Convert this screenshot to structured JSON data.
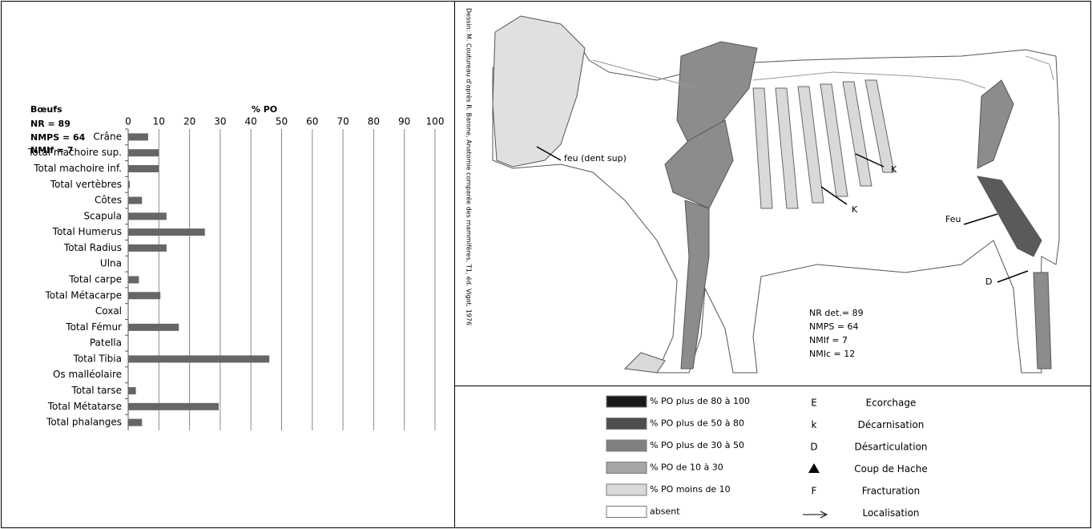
{
  "chart_data": {
    "type": "hbar",
    "title": "% PO",
    "annotations": [
      "Bœufs",
      "NR = 89",
      "NMPS = 64",
      "NMIf = 7"
    ],
    "categories": [
      "Crâne",
      "Total machoire sup.",
      "Total machoire inf.",
      "Total vertèbres",
      "Côtes",
      "Scapula",
      "Total Humerus",
      "Total Radius",
      "Ulna",
      "Total carpe",
      "Total Métacarpe",
      "Coxal",
      "Total Fémur",
      "Patella",
      "Total Tibia",
      "Os malléolaire",
      "Total tarse",
      "Total Métatarse",
      "Total phalanges"
    ],
    "values": [
      6.5,
      10,
      10,
      0.5,
      4.5,
      12.5,
      25,
      12.5,
      0,
      3.5,
      10.5,
      0,
      16.5,
      0,
      46,
      0,
      2.5,
      29.5,
      4.5
    ],
    "color": "#666666",
    "xlim": [
      0,
      100
    ],
    "xticks": [
      0,
      10,
      20,
      30,
      40,
      50,
      60,
      70,
      80,
      90,
      100
    ],
    "grid": true
  },
  "diagram": {
    "credit": "Dessin: M. Coutureau d'après R. Barone, Anatomie comparée des mammifères, T1, éd. Vigot, 1976",
    "annotations": [
      "feu (dent sup)",
      "K",
      "K",
      "Feu",
      "D"
    ],
    "stats": [
      "NR det.= 89",
      "NMPS = 64",
      "NMIf = 7",
      "NMIc = 12"
    ]
  },
  "legend": {
    "levels": [
      {
        "label": "% PO plus de 80 à 100",
        "color": "#1a1a1a"
      },
      {
        "label": "% PO  plus de 50 à 80",
        "color": "#4d4d4d"
      },
      {
        "label": "% PO plus de 30 à 50",
        "color": "#808080"
      },
      {
        "label": "% PO de 10 à 30",
        "color": "#a6a6a6"
      },
      {
        "label": "% PO moins de 10",
        "color": "#d9d9d9"
      },
      {
        "label": "absent",
        "color": "#ffffff"
      }
    ],
    "actions": [
      {
        "symbol": "E",
        "label": "Ecorchage"
      },
      {
        "symbol": "k",
        "label": "Décarnisation"
      },
      {
        "symbol": "D",
        "label": "Désarticulation"
      },
      {
        "label": "Coup de Hache"
      },
      {
        "symbol": "F",
        "label": "Fracturation"
      },
      {
        "label": "Localisation"
      }
    ]
  }
}
